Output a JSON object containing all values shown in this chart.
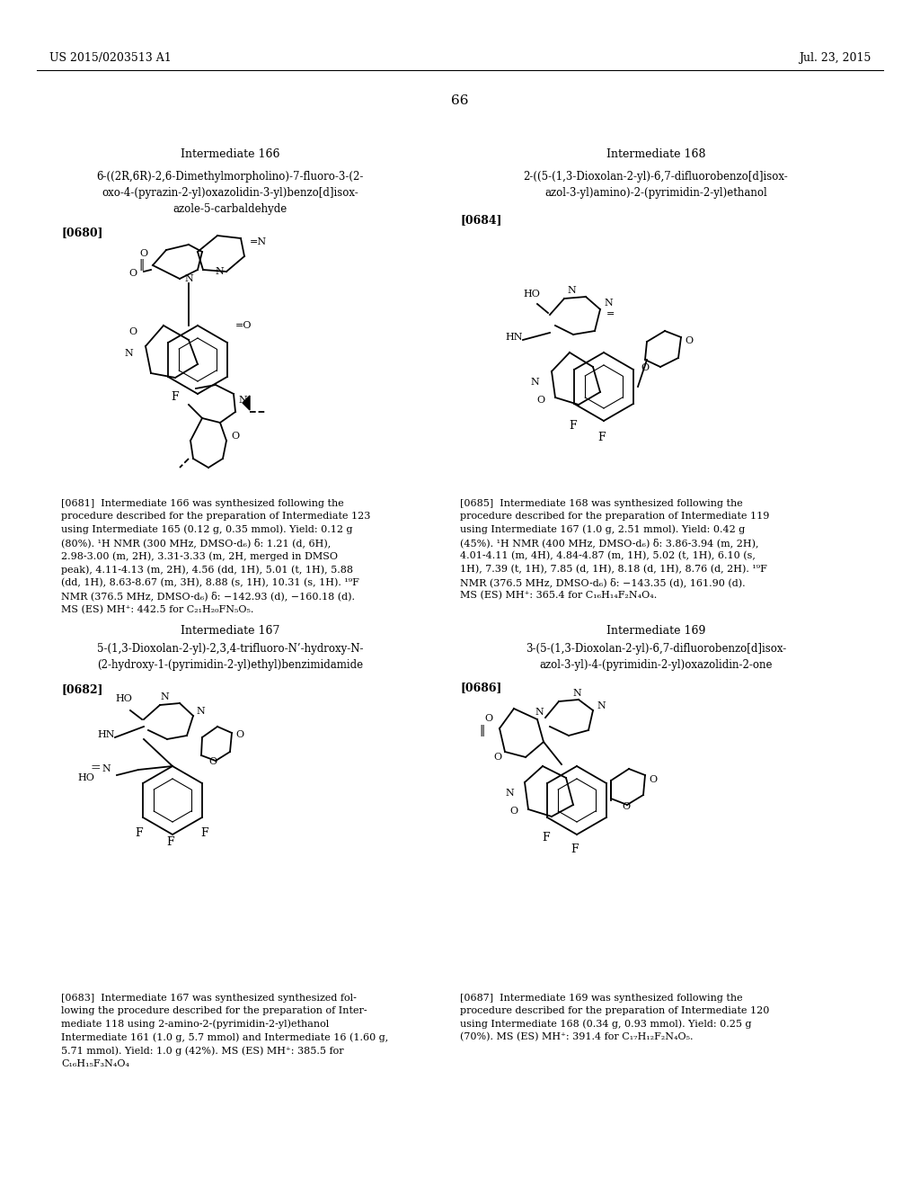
{
  "page_header_left": "US 2015/0203513 A1",
  "page_header_right": "Jul. 23, 2015",
  "page_number": "66",
  "bg_color": "#ffffff",
  "text_color": "#000000",
  "intermediate166_title": "Intermediate 166",
  "intermediate166_name": "6-((2R,6R)-2,6-Dimethylmorpholino)-7-fluoro-3-(2-\noxo-4-(pyrazin-2-yl)oxazolidin-3-yl)benzo[d]isox-\nazole-5-carbaldehyde",
  "intermediate166_tag": "[0680]",
  "intermediate168_title": "Intermediate 168",
  "intermediate168_name": "2-((5-(1,3-Dioxolan-2-yl)-6,7-difluorobenzo[d]isox-\nazol-3-yl)amino)-2-(pyrimidin-2-yl)ethanol",
  "intermediate168_tag": "[0684]",
  "para681": "[0681]  Intermediate 166 was synthesized following the procedure described for the preparation of Intermediate 123 using Intermediate 165 (0.12 g, 0.35 mmol). Yield: 0.12 g (80%). ¹H NMR (300 MHz, DMSO-d₆) δ: 1.21 (d, 6H), 2.98-3.00 (m, 2H), 3.31-3.33 (m, 2H, merged in DMSO peak), 4.11-4.13 (m, 2H), 4.56 (dd, 1H), 5.01 (t, 1H), 5.88 (dd, 1H), 8.63-8.67 (m, 3H), 8.88 (s, 1H), 10.31 (s, 1H). ¹⁹F NMR (376.5 MHz, DMSO-d₆) δ: −142.93 (d), −160.18 (d). MS (ES) MH⁺: 442.5 for C₂₁H₂₀FN₅O₅.",
  "para685": "[0685]  Intermediate 168 was synthesized following the procedure described for the preparation of Intermediate 119 using Intermediate 167 (1.0 g, 2.51 mmol). Yield: 0.42 g (45%). ¹H NMR (400 MHz, DMSO-d₆) δ: 3.86-3.94 (m, 2H), 4.01-4.11 (m, 4H), 4.84-4.87 (m, 1H), 5.02 (t, 1H), 6.10 (s, 1H), 7.39 (t, 1H), 7.85 (d, 1H), 8.18 (d, 1H), 8.76 (d, 2H). ¹⁹F NMR (376.5 MHz, DMSO-d₆) δ: −143.35 (d), 161.90 (d). MS (ES) MH⁺: 365.4 for C₁₆H₁₄F₂N₄O₄.",
  "intermediate167_title": "Intermediate 167",
  "intermediate167_name": "5-(1,3-Dioxolan-2-yl)-2,3,4-trifluoro-N’-hydroxy-N-\n(2-hydroxy-1-(pyrimidin-2-yl)ethyl)benzimidamide",
  "intermediate167_tag": "[0682]",
  "intermediate169_title": "Intermediate 169",
  "intermediate169_name": "3-(5-(1,3-Dioxolan-2-yl)-6,7-difluorobenzo[d]isox-\nazol-3-yl)-4-(pyrimidin-2-yl)oxazolidin-2-one",
  "intermediate169_tag": "[0686]",
  "para683": "[0683]  Intermediate 167 was synthesized synthesized following the procedure described for the preparation of Intermediate 118 using 2-amino-2-(pyrimidin-2-yl)ethanol Intermediate 161 (1.0 g, 5.7 mmol) and Intermediate 16 (1.60 g, 5.71 mmol). Yield: 1.0 g (42%). MS (ES) MH⁺: 385.5 for C₁₆H₁₅F₃N₄O₄",
  "para687": "[0687]  Intermediate 169 was synthesized following the procedure described for the preparation of Intermediate 120 using Intermediate 168 (0.34 g, 0.93 mmol). Yield: 0.25 g (70%). MS (ES) MH⁺: 391.4 for C₁₇H₁₂F₂N₄O₅."
}
